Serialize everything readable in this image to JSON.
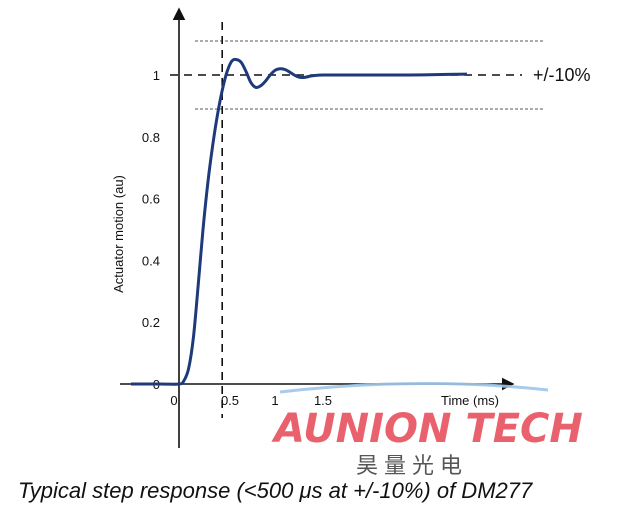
{
  "chart_data": {
    "type": "line",
    "title": "",
    "xlabel": "Time (ms)",
    "ylabel": "Actuator motion (au)",
    "xlim": [
      -0.5,
      3.3
    ],
    "ylim": [
      -0.2,
      1.2
    ],
    "x_ticks": [
      0,
      0.5,
      1,
      1.5
    ],
    "x_tick_labels": [
      "0",
      "0.5",
      "1",
      "1.5"
    ],
    "y_ticks": [
      0,
      0.2,
      0.4,
      0.6,
      0.8,
      1
    ],
    "y_tick_labels": [
      "0",
      "0.2",
      "0.4",
      "0.6",
      "0.8",
      "1"
    ],
    "grid": false,
    "legend": "none",
    "line_color": "#1f3a7a",
    "series": [
      {
        "x": [
          -0.5,
          -0.2,
          0.0,
          0.05,
          0.1,
          0.15,
          0.2,
          0.25,
          0.3,
          0.35,
          0.4,
          0.45,
          0.5,
          0.55,
          0.6,
          0.65,
          0.7,
          0.75,
          0.8,
          0.85,
          0.9,
          0.95,
          1.0,
          1.05,
          1.1,
          1.15,
          1.2,
          1.25,
          1.3,
          1.35,
          1.4,
          1.5,
          1.7,
          2.0,
          2.4,
          2.8,
          3.0
        ],
        "y": [
          0.0,
          0.0,
          0.0,
          0.01,
          0.05,
          0.15,
          0.32,
          0.5,
          0.65,
          0.77,
          0.87,
          0.95,
          1.01,
          1.045,
          1.05,
          1.04,
          1.01,
          0.975,
          0.96,
          0.965,
          0.98,
          1.0,
          1.015,
          1.02,
          1.018,
          1.01,
          1.0,
          0.993,
          0.992,
          0.995,
          0.998,
          1.0,
          1.0,
          1.0,
          1.0,
          1.002,
          1.003
        ]
      }
    ],
    "reference_lines": {
      "target_y": 1,
      "upper_tolerance_y": 1.11,
      "lower_tolerance_y": 0.89,
      "settle_time_x": 0.45,
      "tolerance_label": "+/-10%"
    }
  },
  "watermark": {
    "main": "AUNION TECH",
    "sub": "昊量光电"
  },
  "caption": "Typical step response (<500 μs at +/-10%) of DM277"
}
